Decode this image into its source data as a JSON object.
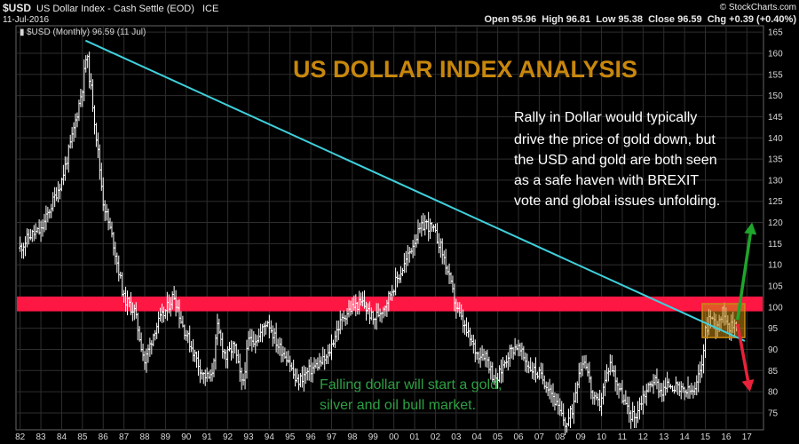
{
  "header": {
    "symbol": "$USD",
    "name": "US Dollar Index - Cash Settle (EOD)",
    "exchange": "ICE",
    "date": "11-Jul-2016",
    "ohlc_text": "Open 95.96  High 96.81  Low 95.38  Close 96.59  Chg +0.39 (+0.40%)",
    "brand": "© StockCharts.com"
  },
  "legend_text": "$USD (Monthly) 96.59 (11 Jul)",
  "colors": {
    "background": "#000000",
    "grid": "#2e2e2e",
    "price": "#ffffff",
    "trendline": "#3fd0dc",
    "resistance_band": "#ff1744",
    "box": "#c88a12",
    "arrow_up": "#1fa52b",
    "arrow_down": "#e8223a",
    "title": "#c8870c",
    "note_white": "#ffffff",
    "note_green": "#2ea043"
  },
  "chart_data": {
    "type": "bar",
    "title": "US DOLLAR INDEX ANALYSIS",
    "x_tick_labels": [
      "82",
      "83",
      "84",
      "85",
      "86",
      "87",
      "88",
      "89",
      "90",
      "91",
      "92",
      "93",
      "94",
      "95",
      "96",
      "97",
      "98",
      "99",
      "00",
      "01",
      "02",
      "03",
      "04",
      "05",
      "06",
      "07",
      "08",
      "09",
      "10",
      "11",
      "12",
      "13",
      "14",
      "15",
      "16",
      "17"
    ],
    "y_ticks": [
      75,
      80,
      85,
      90,
      95,
      100,
      105,
      110,
      115,
      120,
      125,
      130,
      135,
      140,
      145,
      150,
      155,
      160,
      165
    ],
    "xlim": [
      1981.8,
      2017.8
    ],
    "ylim": [
      71,
      166.5
    ],
    "series": [
      {
        "anchors": [
          [
            1982.0,
            114
          ],
          [
            1982.5,
            117
          ],
          [
            1983.0,
            118
          ],
          [
            1983.5,
            124
          ],
          [
            1984.0,
            130
          ],
          [
            1984.5,
            140
          ],
          [
            1985.0,
            152
          ],
          [
            1985.2,
            160
          ],
          [
            1985.5,
            148
          ],
          [
            1986.0,
            125
          ],
          [
            1986.5,
            115
          ],
          [
            1987.0,
            102
          ],
          [
            1987.5,
            99
          ],
          [
            1988.0,
            87
          ],
          [
            1988.5,
            95
          ],
          [
            1989.0,
            99
          ],
          [
            1989.4,
            103
          ],
          [
            1989.8,
            96
          ],
          [
            1990.3,
            90
          ],
          [
            1990.8,
            84
          ],
          [
            1991.2,
            83
          ],
          [
            1991.5,
            95
          ],
          [
            1991.9,
            88
          ],
          [
            1992.3,
            91
          ],
          [
            1992.7,
            81
          ],
          [
            1993.0,
            92
          ],
          [
            1993.5,
            93
          ],
          [
            1993.9,
            97
          ],
          [
            1994.4,
            91
          ],
          [
            1994.9,
            88
          ],
          [
            1995.3,
            82
          ],
          [
            1995.7,
            84
          ],
          [
            1996.2,
            86
          ],
          [
            1996.8,
            88
          ],
          [
            1997.2,
            94
          ],
          [
            1997.6,
            98
          ],
          [
            1998.0,
            100
          ],
          [
            1998.5,
            101
          ],
          [
            1999.0,
            97
          ],
          [
            1999.5,
            100
          ],
          [
            2000.0,
            105
          ],
          [
            2000.5,
            110
          ],
          [
            2001.0,
            116
          ],
          [
            2001.5,
            120
          ],
          [
            2001.9,
            118
          ],
          [
            2002.2,
            115
          ],
          [
            2002.5,
            110
          ],
          [
            2003.0,
            100
          ],
          [
            2003.5,
            94
          ],
          [
            2004.0,
            89
          ],
          [
            2004.4,
            89
          ],
          [
            2004.9,
            82
          ],
          [
            2005.5,
            89
          ],
          [
            2005.9,
            91
          ],
          [
            2006.5,
            86
          ],
          [
            2007.0,
            84
          ],
          [
            2007.5,
            81
          ],
          [
            2007.9,
            76
          ],
          [
            2008.3,
            72
          ],
          [
            2008.6,
            76
          ],
          [
            2008.9,
            85
          ],
          [
            2009.2,
            88
          ],
          [
            2009.6,
            78
          ],
          [
            2009.9,
            77
          ],
          [
            2010.4,
            87
          ],
          [
            2010.9,
            80
          ],
          [
            2011.3,
            75
          ],
          [
            2011.6,
            74
          ],
          [
            2012.0,
            79
          ],
          [
            2012.5,
            83
          ],
          [
            2012.9,
            80
          ],
          [
            2013.3,
            82
          ],
          [
            2013.8,
            80
          ],
          [
            2014.2,
            80
          ],
          [
            2014.5,
            80
          ],
          [
            2014.8,
            86
          ],
          [
            2015.0,
            94
          ],
          [
            2015.2,
            98
          ],
          [
            2015.5,
            96
          ],
          [
            2015.9,
            99
          ],
          [
            2016.2,
            95
          ],
          [
            2016.5,
            96.6
          ]
        ]
      }
    ],
    "annotations": {
      "trendline": {
        "from": [
          1985.15,
          163
        ],
        "to": [
          2016.9,
          92
        ]
      },
      "resistance_band": {
        "y_from": 99,
        "y_to": 102.5
      },
      "consolidation_box": {
        "x_from": 2014.85,
        "x_to": 2016.9,
        "y_from": 92.8,
        "y_to": 100.8
      },
      "arrow_up": {
        "from": [
          2016.55,
          97
        ],
        "to": [
          2017.25,
          120
        ]
      },
      "arrow_down": {
        "from": [
          2016.55,
          96
        ],
        "to": [
          2017.15,
          80
        ]
      }
    },
    "notes": {
      "upper_right": [
        "Rally in Dollar would typically",
        "drive the price of gold down, but",
        "the USD and gold are both seen",
        "as a safe haven with BREXIT",
        "vote and global issues unfolding."
      ],
      "lower": [
        "Falling dollar will start a gold,",
        "silver and oil bull market."
      ]
    }
  }
}
